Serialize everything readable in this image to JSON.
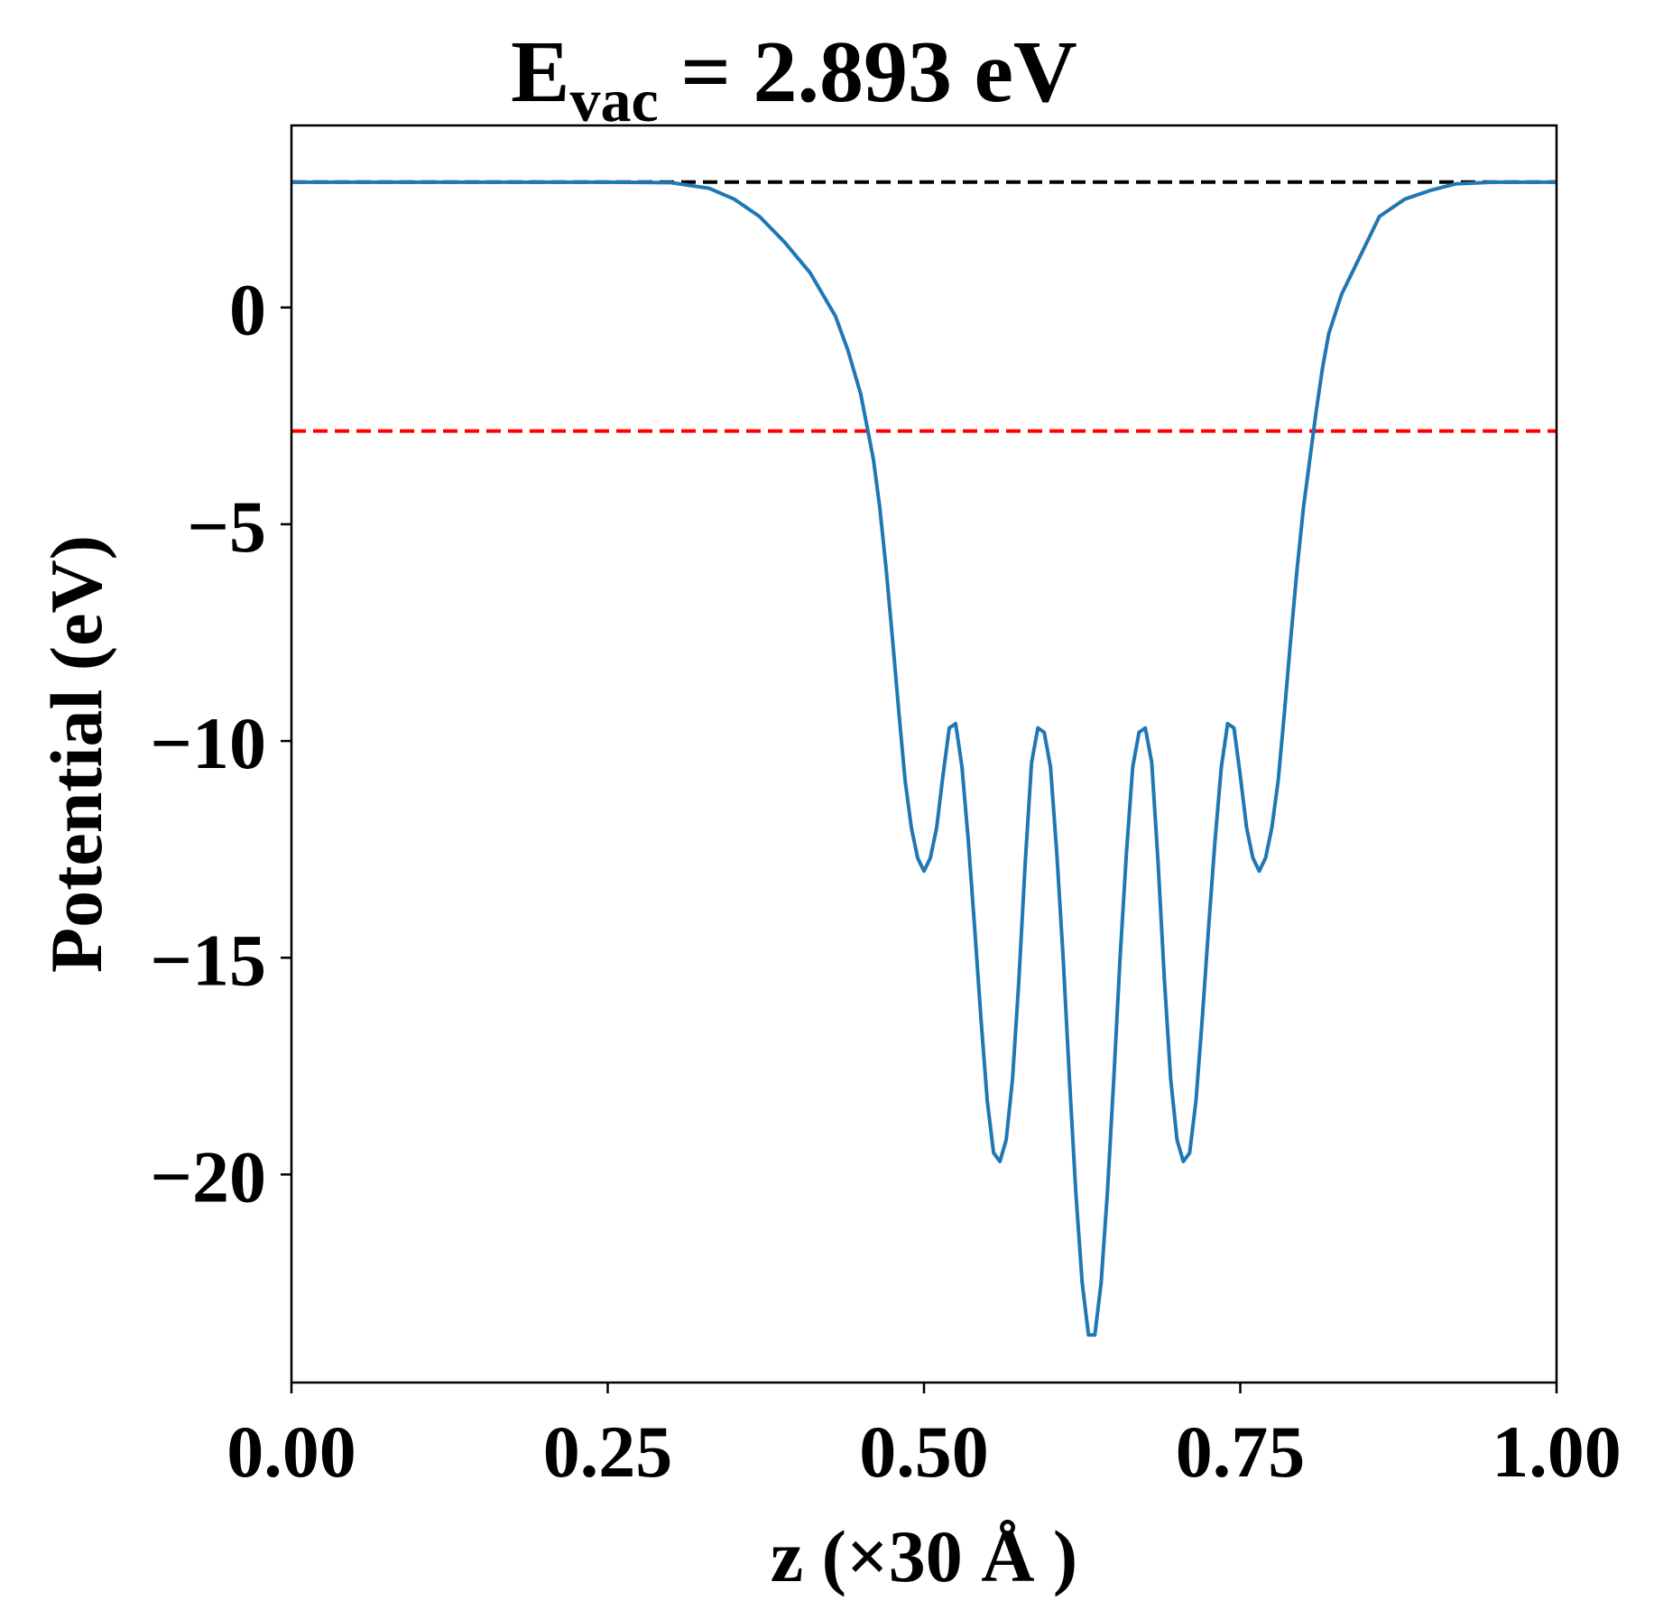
{
  "chart_data": {
    "type": "line",
    "title": {
      "prefix": "E",
      "subscript": "vac",
      "suffix": " = 2.893 eV"
    },
    "xlabel": "z (×30 Å )",
    "ylabel": "Potential (eV)",
    "xlim": [
      0.0,
      1.0
    ],
    "ylim": [
      -24.8,
      4.2
    ],
    "xticks": [
      {
        "value": 0.0,
        "label": "0.00"
      },
      {
        "value": 0.25,
        "label": "0.25"
      },
      {
        "value": 0.5,
        "label": "0.50"
      },
      {
        "value": 0.75,
        "label": "0.75"
      },
      {
        "value": 1.0,
        "label": "1.00"
      }
    ],
    "yticks": [
      {
        "value": 0,
        "label": "0"
      },
      {
        "value": -5,
        "label": "−5"
      },
      {
        "value": -10,
        "label": "−10"
      },
      {
        "value": -15,
        "label": "−15"
      },
      {
        "value": -20,
        "label": "−20"
      }
    ],
    "grid": false,
    "legend": "none",
    "reference_lines": [
      {
        "y": 2.893,
        "color": "#000000",
        "style": "dashed"
      },
      {
        "y": -2.85,
        "color": "#ff0000",
        "style": "dashed"
      }
    ],
    "series": [
      {
        "color": "#1f77b4",
        "x": [
          0.0,
          0.05,
          0.1,
          0.15,
          0.2,
          0.25,
          0.3,
          0.33,
          0.35,
          0.37,
          0.39,
          0.41,
          0.43,
          0.44,
          0.45,
          0.46,
          0.465,
          0.47,
          0.475,
          0.48,
          0.485,
          0.49,
          0.495,
          0.5,
          0.505,
          0.51,
          0.515,
          0.52,
          0.525,
          0.53,
          0.535,
          0.54,
          0.545,
          0.55,
          0.555,
          0.56,
          0.565,
          0.57,
          0.575,
          0.58,
          0.585,
          0.59,
          0.595,
          0.6,
          0.605,
          0.61,
          0.615,
          0.62,
          0.625,
          0.63,
          0.635,
          0.64,
          0.645,
          0.65,
          0.655,
          0.66,
          0.665,
          0.67,
          0.675,
          0.68,
          0.685,
          0.69,
          0.695,
          0.7,
          0.705,
          0.71,
          0.715,
          0.72,
          0.725,
          0.73,
          0.735,
          0.74,
          0.745,
          0.75,
          0.755,
          0.76,
          0.765,
          0.77,
          0.775,
          0.78,
          0.785,
          0.79,
          0.795,
          0.8,
          0.805,
          0.81,
          0.815,
          0.82,
          0.83,
          0.84,
          0.85,
          0.86,
          0.88,
          0.9,
          0.92,
          0.95,
          0.98,
          1.0
        ],
        "y": [
          2.89,
          2.89,
          2.89,
          2.89,
          2.89,
          2.89,
          2.88,
          2.75,
          2.5,
          2.1,
          1.5,
          0.8,
          -0.2,
          -1.0,
          -2.0,
          -3.5,
          -4.6,
          -6.0,
          -7.6,
          -9.3,
          -10.9,
          -12.0,
          -12.7,
          -13.0,
          -12.7,
          -12.0,
          -10.8,
          -9.7,
          -9.6,
          -10.6,
          -12.3,
          -14.3,
          -16.4,
          -18.3,
          -19.5,
          -19.7,
          -19.2,
          -17.8,
          -15.5,
          -12.8,
          -10.5,
          -9.7,
          -9.8,
          -10.6,
          -12.6,
          -15.0,
          -17.8,
          -20.4,
          -22.5,
          -23.7,
          -23.7,
          -22.5,
          -20.4,
          -17.8,
          -15.0,
          -12.6,
          -10.6,
          -9.8,
          -9.7,
          -10.5,
          -12.8,
          -15.5,
          -17.8,
          -19.2,
          -19.7,
          -19.5,
          -18.3,
          -16.4,
          -14.3,
          -12.3,
          -10.6,
          -9.6,
          -9.7,
          -10.8,
          -12.0,
          -12.7,
          -13.0,
          -12.7,
          -12.0,
          -10.9,
          -9.3,
          -7.6,
          -6.0,
          -4.6,
          -3.5,
          -2.4,
          -1.4,
          -0.6,
          0.3,
          0.9,
          1.5,
          2.1,
          2.5,
          2.7,
          2.85,
          2.89,
          2.89,
          2.89
        ]
      }
    ]
  }
}
